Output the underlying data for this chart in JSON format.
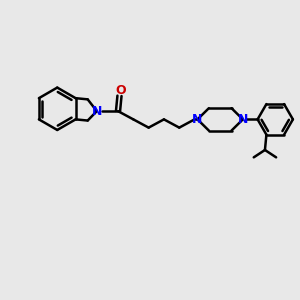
{
  "bg_color": "#e8e8e8",
  "bond_color": "#000000",
  "N_color": "#0000ff",
  "O_color": "#cc0000",
  "line_width": 1.8,
  "figsize": [
    3.0,
    3.0
  ],
  "dpi": 100,
  "xlim": [
    0,
    10
  ],
  "ylim": [
    0,
    10
  ]
}
